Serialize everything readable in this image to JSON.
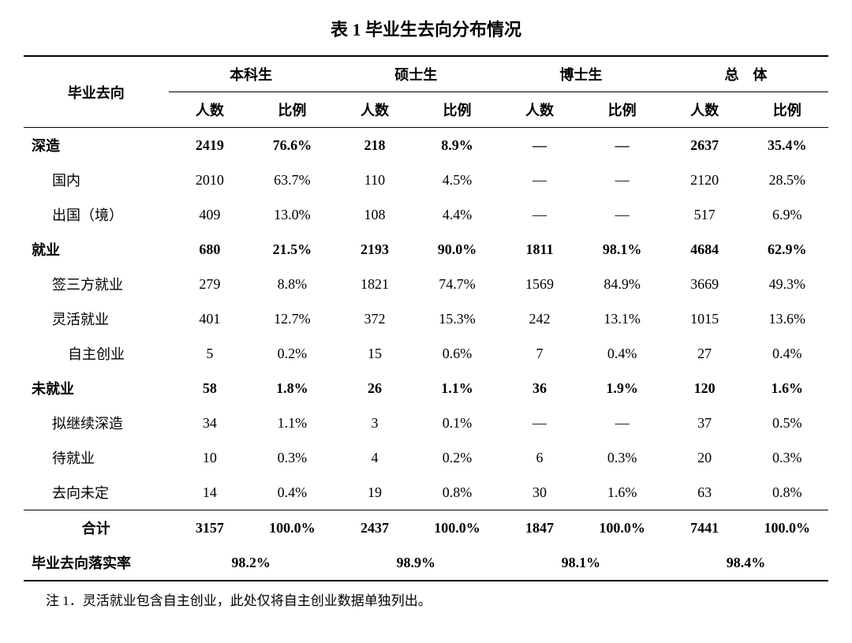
{
  "title": "表 1 毕业生去向分布情况",
  "header": {
    "rowLabel": "毕业去向",
    "groups": [
      "本科生",
      "硕士生",
      "博士生",
      "总　体"
    ],
    "sub": [
      "人数",
      "比例"
    ]
  },
  "rows": [
    {
      "label": "深造",
      "bold": true,
      "indent": 0,
      "cells": [
        "2419",
        "76.6%",
        "218",
        "8.9%",
        "—",
        "—",
        "2637",
        "35.4%"
      ]
    },
    {
      "label": "国内",
      "bold": false,
      "indent": 1,
      "cells": [
        "2010",
        "63.7%",
        "110",
        "4.5%",
        "—",
        "—",
        "2120",
        "28.5%"
      ]
    },
    {
      "label": "出国（境）",
      "bold": false,
      "indent": 1,
      "cells": [
        "409",
        "13.0%",
        "108",
        "4.4%",
        "—",
        "—",
        "517",
        "6.9%"
      ]
    },
    {
      "label": "就业",
      "bold": true,
      "indent": 0,
      "cells": [
        "680",
        "21.5%",
        "2193",
        "90.0%",
        "1811",
        "98.1%",
        "4684",
        "62.9%"
      ]
    },
    {
      "label": "签三方就业",
      "bold": false,
      "indent": 1,
      "cells": [
        "279",
        "8.8%",
        "1821",
        "74.7%",
        "1569",
        "84.9%",
        "3669",
        "49.3%"
      ]
    },
    {
      "label": "灵活就业",
      "bold": false,
      "indent": 1,
      "cells": [
        "401",
        "12.7%",
        "372",
        "15.3%",
        "242",
        "13.1%",
        "1015",
        "13.6%"
      ]
    },
    {
      "label": "自主创业",
      "bold": false,
      "indent": 2,
      "cells": [
        "5",
        "0.2%",
        "15",
        "0.6%",
        "7",
        "0.4%",
        "27",
        "0.4%"
      ]
    },
    {
      "label": "未就业",
      "bold": true,
      "indent": 0,
      "cells": [
        "58",
        "1.8%",
        "26",
        "1.1%",
        "36",
        "1.9%",
        "120",
        "1.6%"
      ]
    },
    {
      "label": "拟继续深造",
      "bold": false,
      "indent": 1,
      "cells": [
        "34",
        "1.1%",
        "3",
        "0.1%",
        "—",
        "—",
        "37",
        "0.5%"
      ]
    },
    {
      "label": "待就业",
      "bold": false,
      "indent": 1,
      "cells": [
        "10",
        "0.3%",
        "4",
        "0.2%",
        "6",
        "0.3%",
        "20",
        "0.3%"
      ]
    },
    {
      "label": "去向未定",
      "bold": false,
      "indent": 1,
      "cells": [
        "14",
        "0.4%",
        "19",
        "0.8%",
        "30",
        "1.6%",
        "63",
        "0.8%"
      ]
    }
  ],
  "totalRow": {
    "label": "合计",
    "cells": [
      "3157",
      "100.0%",
      "2437",
      "100.0%",
      "1847",
      "100.0%",
      "7441",
      "100.0%"
    ]
  },
  "rateRow": {
    "label": "毕业去向落实率",
    "values": [
      "98.2%",
      "98.9%",
      "98.1%",
      "98.4%"
    ]
  },
  "note": "注 1．灵活就业包含自主创业，此处仅将自主创业数据单独列出。"
}
